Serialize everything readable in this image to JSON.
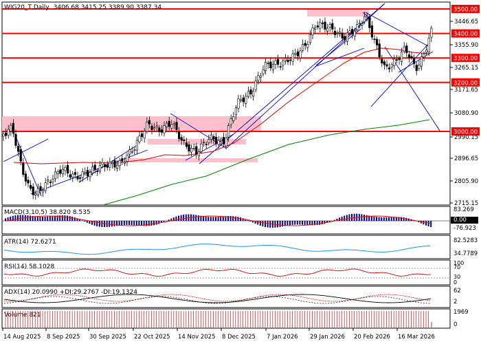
{
  "header": {
    "symbol": "WIG20_T,Daily",
    "ohlc": "3406.68 3415.25 3389.90 3387.34"
  },
  "price_axis": {
    "ticks": [
      "3446.65",
      "3355.90",
      "3265.15",
      "3171.65",
      "3080.90",
      "2990.15",
      "2896.65",
      "2805.90",
      "2715.15"
    ]
  },
  "levels": [
    {
      "value": 3500,
      "label": "3500.00"
    },
    {
      "value": 3400,
      "label": "3400.00"
    },
    {
      "value": 3300,
      "label": "3300.00"
    },
    {
      "value": 3200,
      "label": "3200.00"
    },
    {
      "value": 3000,
      "label": "3000.00"
    }
  ],
  "x_labels": [
    "14 Aug 2025",
    "8 Sep 2025",
    "30 Sep 2025",
    "22 Oct 2025",
    "14 Nov 2025",
    "8 Dec 2025",
    "7 Jan 2026",
    "29 Jan 2026",
    "20 Feb 2026",
    "16 Mar 2026"
  ],
  "indicators": {
    "macd": {
      "label": "MACD(3,10,5) 38.820 8.535",
      "ticks": [
        "83.269",
        "0.00",
        "-76.923"
      ]
    },
    "atr": {
      "label": "ATR(14) 72.6271",
      "ticks": [
        "82.5283",
        "34.7789"
      ]
    },
    "rsi": {
      "label": "RSI(14) 58.1028",
      "ticks": [
        "100",
        "70",
        "30",
        "0"
      ]
    },
    "adx": {
      "label": "ADX(14) 20.0990 +DI:29.2767 -DI:19.1324",
      "ticks": [
        "62",
        "2"
      ]
    },
    "volume": {
      "label": "Volume 821",
      "ticks": [
        "1969",
        "0"
      ]
    }
  },
  "colors": {
    "level": "#ff0000",
    "zone": "#ffc0cb",
    "up": "#ffffff",
    "down": "#000000",
    "trendline": "#0000cc",
    "ma_fast": "#dd0000",
    "ma_slow": "#008000",
    "macd_hist": "#000080",
    "macd_signal": "#ff0000",
    "atr": "#1e90ff",
    "rsi": "#cc0000"
  },
  "chart_data": {
    "type": "candlestick",
    "ylim": [
      2715.15,
      3537
    ],
    "x": [
      "14 Aug 2025",
      "8 Sep 2025",
      "30 Sep 2025",
      "22 Oct 2025",
      "14 Nov 2025",
      "8 Dec 2025",
      "7 Jan 2026",
      "29 Jan 2026",
      "20 Feb 2026",
      "16 Mar 2026"
    ],
    "approx_close_path": [
      {
        "date": "14 Aug 2025",
        "close": 2985
      },
      {
        "date": "20 Aug 2025",
        "close": 2950
      },
      {
        "date": "28 Aug 2025",
        "close": 2780
      },
      {
        "date": "8 Sep 2025",
        "close": 2830
      },
      {
        "date": "30 Sep 2025",
        "close": 2890
      },
      {
        "date": "22 Oct 2025",
        "close": 3060
      },
      {
        "date": "14 Nov 2025",
        "close": 2960
      },
      {
        "date": "8 Dec 2025",
        "close": 3010
      },
      {
        "date": "7 Jan 2026",
        "close": 3300
      },
      {
        "date": "29 Jan 2026",
        "close": 3420
      },
      {
        "date": "20 Feb 2026",
        "close": 3470
      },
      {
        "date": "16 Mar 2026",
        "close": 3290
      },
      {
        "date": "28 Mar 2026",
        "close": 3387
      }
    ],
    "last_close": 3387.34
  }
}
